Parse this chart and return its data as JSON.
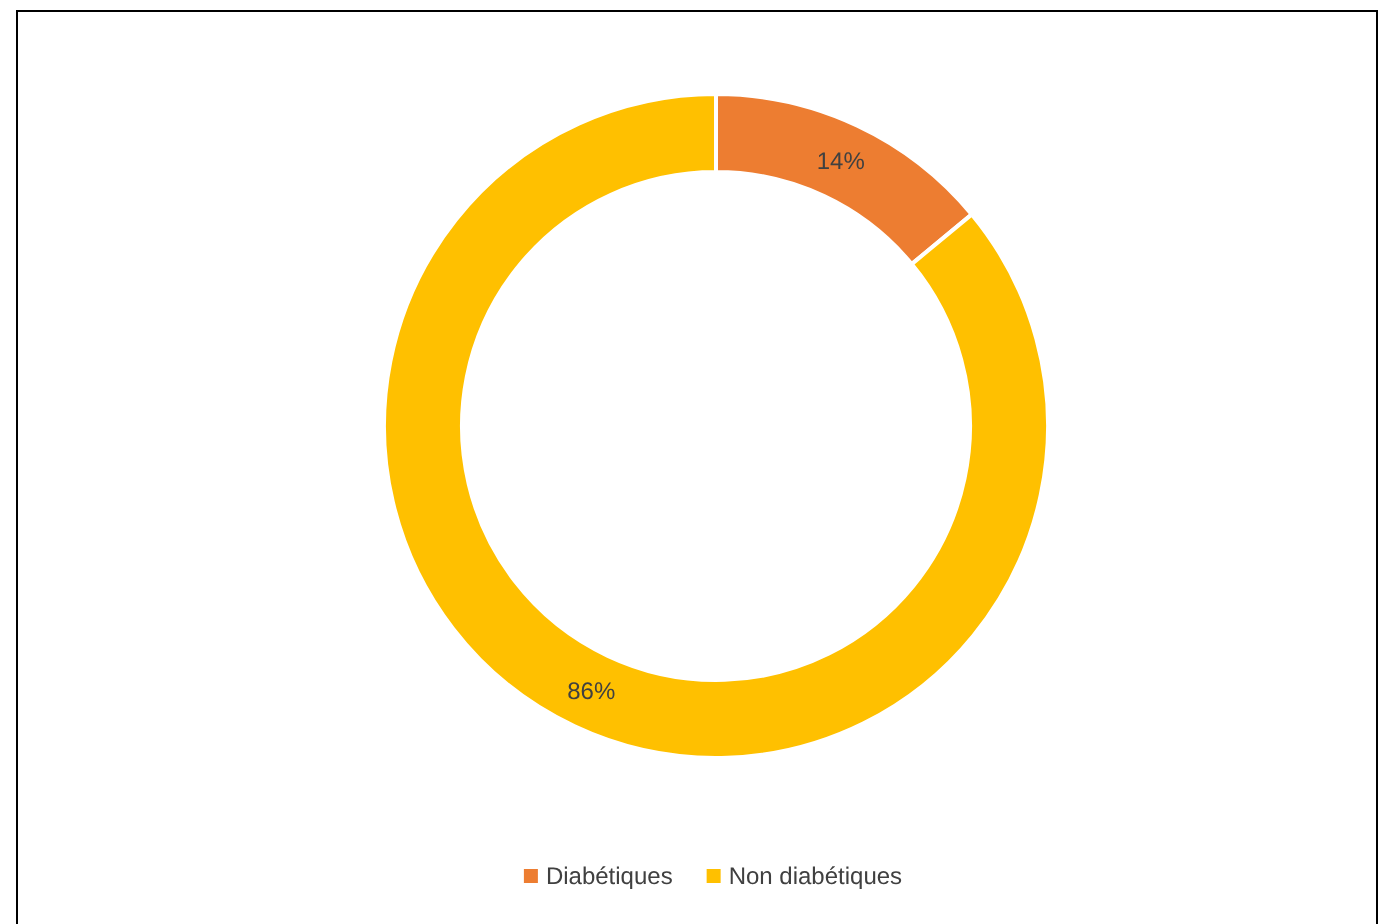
{
  "chart_data": {
    "type": "donut",
    "categories": [
      "Diabétiques",
      "Non diabétiques"
    ],
    "values": [
      14,
      86
    ],
    "colors": [
      "#ed7d31",
      "#ffc000"
    ],
    "value_labels": [
      "14%",
      "86%"
    ],
    "legend": "bottom"
  }
}
